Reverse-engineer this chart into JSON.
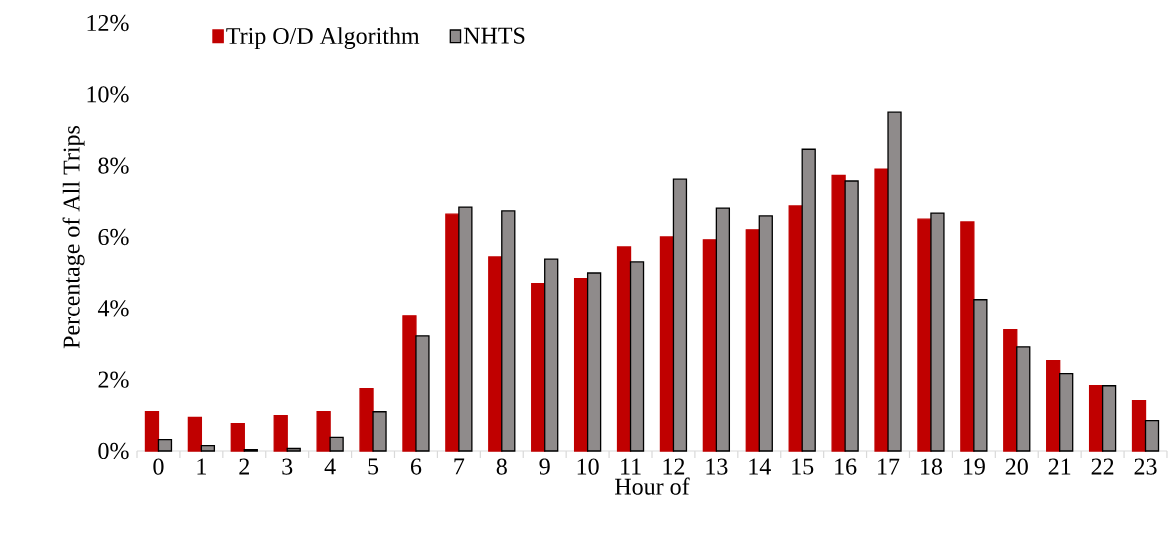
{
  "chart_data": {
    "type": "bar",
    "xlabel": "Hour of",
    "ylabel": "Percentage of All Trips",
    "categories": [
      "0",
      "1",
      "2",
      "3",
      "4",
      "5",
      "6",
      "7",
      "8",
      "9",
      "10",
      "11",
      "12",
      "13",
      "14",
      "15",
      "16",
      "17",
      "18",
      "19",
      "20",
      "21",
      "22",
      "23"
    ],
    "series": [
      {
        "name": "Trip O/D Algorithm",
        "color": "#c00000",
        "values": [
          1.1,
          0.94,
          0.77,
          0.99,
          1.1,
          1.75,
          3.79,
          6.64,
          5.44,
          4.69,
          4.83,
          5.72,
          6.0,
          5.92,
          6.2,
          6.87,
          7.73,
          7.9,
          6.5,
          6.42,
          3.4,
          2.53,
          1.83,
          1.41
        ]
      },
      {
        "name": "NHTS",
        "color": "#8f8b8b",
        "values": [
          0.32,
          0.15,
          0.04,
          0.07,
          0.38,
          1.1,
          3.23,
          6.84,
          6.73,
          5.38,
          4.99,
          5.3,
          7.62,
          6.81,
          6.59,
          8.46,
          7.57,
          9.5,
          6.67,
          4.24,
          2.92,
          2.17,
          1.83,
          0.85
        ]
      }
    ],
    "ylim": [
      0,
      12
    ],
    "yticks": [
      {
        "value": 0,
        "label": "0%"
      },
      {
        "value": 2,
        "label": "2%"
      },
      {
        "value": 4,
        "label": "4%"
      },
      {
        "value": 6,
        "label": "6%"
      },
      {
        "value": 8,
        "label": "8%"
      },
      {
        "value": 10,
        "label": "10%"
      },
      {
        "value": 12,
        "label": "12%"
      }
    ],
    "legend": "top left"
  }
}
